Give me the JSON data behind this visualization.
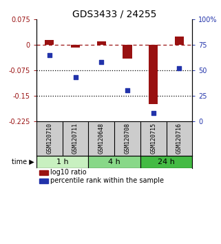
{
  "title": "GDS3433 / 24255",
  "samples": [
    "GSM120710",
    "GSM120711",
    "GSM120648",
    "GSM120708",
    "GSM120715",
    "GSM120716"
  ],
  "log10_ratio": [
    0.015,
    -0.008,
    0.01,
    -0.04,
    -0.175,
    0.025
  ],
  "percentile_rank": [
    65,
    43,
    58,
    30,
    8,
    52
  ],
  "time_groups": [
    {
      "label": "1 h",
      "start": 0,
      "end": 2,
      "color": "#c8f0c0"
    },
    {
      "label": "4 h",
      "start": 2,
      "end": 4,
      "color": "#88d888"
    },
    {
      "label": "24 h",
      "start": 4,
      "end": 6,
      "color": "#44bb44"
    }
  ],
  "ylim_left": [
    -0.225,
    0.075
  ],
  "ylim_right": [
    0,
    100
  ],
  "yticks_left": [
    0.075,
    0,
    -0.075,
    -0.15,
    -0.225
  ],
  "yticks_right": [
    100,
    75,
    50,
    25,
    0
  ],
  "hlines_dashed": [
    0
  ],
  "hlines_dotted": [
    -0.075,
    -0.15
  ],
  "bar_color": "#991111",
  "dot_color": "#2233aa",
  "bar_width": 0.35,
  "dot_size": 22,
  "legend_items": [
    "log10 ratio",
    "percentile rank within the sample"
  ],
  "background_color": "#ffffff",
  "title_fontsize": 10,
  "tick_fontsize": 7,
  "sample_fontsize": 6,
  "time_fontsize": 8,
  "legend_fontsize": 7,
  "sample_bg": "#cccccc",
  "sample_divider": "#888888"
}
